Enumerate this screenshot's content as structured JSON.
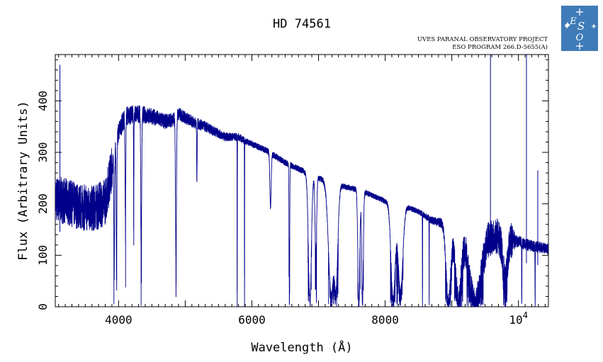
{
  "chart_data": {
    "type": "line",
    "title": "HD 74561",
    "subtitle_lines": [
      "UVES PARANAL OBSERVATORY PROJECT",
      "ESO PROGRAM 266.D-5655(A)"
    ],
    "xlabel": "Wavelength (Å)",
    "ylabel": "Flux (Arbitrary Units)",
    "xlim": [
      3050,
      10450
    ],
    "ylim": [
      0,
      490
    ],
    "x_ticks": [
      {
        "value": 4000,
        "label": "4000"
      },
      {
        "value": 6000,
        "label": "6000"
      },
      {
        "value": 8000,
        "label": "8000"
      },
      {
        "value": 10000,
        "label": "10",
        "exponent": "4"
      }
    ],
    "y_ticks": [
      {
        "value": 0,
        "label": "0"
      },
      {
        "value": 100,
        "label": "100"
      },
      {
        "value": 200,
        "label": "200"
      },
      {
        "value": 300,
        "label": "300"
      },
      {
        "value": 400,
        "label": "400"
      }
    ],
    "line_color": "#00008b",
    "series": [
      {
        "continuum": [
          [
            3050,
            210
          ],
          [
            3200,
            205
          ],
          [
            3400,
            195
          ],
          [
            3600,
            190
          ],
          [
            3700,
            195
          ],
          [
            3800,
            205
          ],
          [
            3900,
            270
          ],
          [
            4000,
            340
          ],
          [
            4100,
            370
          ],
          [
            4300,
            375
          ],
          [
            4500,
            370
          ],
          [
            4700,
            360
          ],
          [
            4850,
            365
          ],
          [
            4900,
            375
          ],
          [
            5100,
            360
          ],
          [
            5300,
            350
          ],
          [
            5600,
            330
          ],
          [
            5800,
            330
          ],
          [
            5900,
            322
          ],
          [
            6200,
            305
          ],
          [
            6500,
            280
          ],
          [
            6700,
            268
          ],
          [
            6900,
            255
          ],
          [
            7200,
            240
          ],
          [
            7500,
            230
          ],
          [
            7700,
            222
          ],
          [
            8000,
            205
          ],
          [
            8300,
            195
          ],
          [
            8500,
            185
          ],
          [
            8700,
            168
          ],
          [
            9000,
            158
          ],
          [
            9300,
            150
          ],
          [
            9600,
            140
          ],
          [
            9900,
            130
          ],
          [
            10200,
            118
          ],
          [
            10450,
            112
          ]
        ],
        "noise": [
          [
            3050,
            45
          ],
          [
            3900,
            45
          ],
          [
            3910,
            20
          ],
          [
            5300,
            10
          ],
          [
            6000,
            6
          ],
          [
            8500,
            5
          ],
          [
            8900,
            10
          ],
          [
            9100,
            35
          ],
          [
            9900,
            35
          ],
          [
            9950,
            12
          ],
          [
            10450,
            10
          ]
        ],
        "features": [
          {
            "center": 3934,
            "depth": 0.78,
            "width": 5
          },
          {
            "center": 3969,
            "depth": 0.75,
            "width": 5
          },
          {
            "center": 4102,
            "depth": 0.5,
            "width": 6
          },
          {
            "center": 4227,
            "depth": 0.45,
            "width": 3
          },
          {
            "center": 4340,
            "depth": 0.65,
            "width": 7
          },
          {
            "center": 4861,
            "depth": 0.75,
            "width": 7
          },
          {
            "center": 5175,
            "depth": 0.3,
            "width": 4
          },
          {
            "center": 5780,
            "depth": 1.0,
            "width": 1.5
          },
          {
            "center": 5890,
            "depth": 1.0,
            "width": 1.5
          },
          {
            "center": 6280,
            "depth": 0.35,
            "width": 10
          },
          {
            "center": 6563,
            "depth": 0.85,
            "width": 5
          },
          {
            "center": 6870,
            "depth": 0.95,
            "width": 22
          },
          {
            "center": 6960,
            "depth": 0.6,
            "width": 12
          },
          {
            "center": 7190,
            "depth": 0.9,
            "width": 40
          },
          {
            "center": 7260,
            "depth": 0.85,
            "width": 28
          },
          {
            "center": 7605,
            "depth": 1.0,
            "width": 14
          },
          {
            "center": 7660,
            "depth": 0.95,
            "width": 12
          },
          {
            "center": 8120,
            "depth": 0.92,
            "width": 32
          },
          {
            "center": 8230,
            "depth": 0.85,
            "width": 35
          },
          {
            "center": 8560,
            "depth": 1.0,
            "width": 1.5
          },
          {
            "center": 8660,
            "depth": 1.0,
            "width": 1.5
          },
          {
            "center": 8950,
            "depth": 0.95,
            "width": 35
          },
          {
            "center": 9100,
            "depth": 0.95,
            "width": 45
          },
          {
            "center": 9350,
            "depth": 1.0,
            "width": 90
          },
          {
            "center": 9800,
            "depth": 0.6,
            "width": 35
          },
          {
            "center": 10050,
            "depth": 1.0,
            "width": 2
          },
          {
            "center": 10250,
            "depth": 1.0,
            "width": 2
          }
        ],
        "spikes": [
          {
            "x": 3120,
            "y": 470
          },
          {
            "x": 9580,
            "y": 490
          },
          {
            "x": 10120,
            "y": 490
          },
          {
            "x": 10290,
            "y": 265
          }
        ]
      }
    ]
  },
  "logo": {
    "letters": "ESO",
    "bg": "#3f7bb8"
  }
}
